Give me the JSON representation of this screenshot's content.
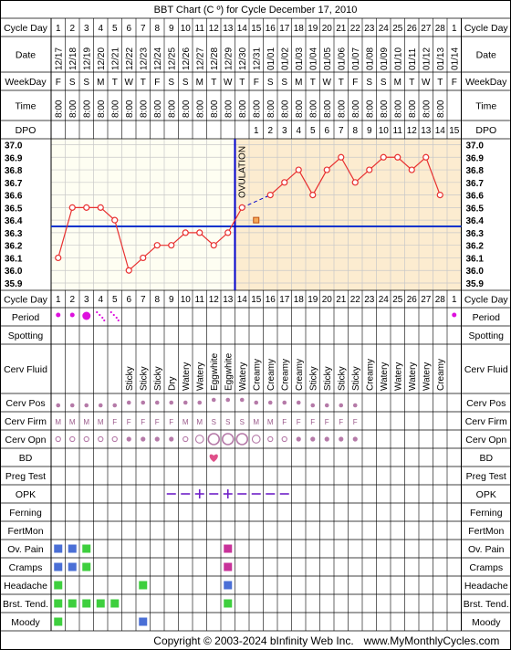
{
  "title": "BBT Chart (C º) for Cycle December 17, 2010",
  "footer": {
    "copyright": "Copyright © 2003-2024 bInfinity Web Inc.",
    "url": "www.MyMonthlyCycles.com"
  },
  "row_labels": {
    "cycle_day": "Cycle Day",
    "date": "Date",
    "weekday": "WeekDay",
    "time": "Time",
    "dpo": "DPO",
    "period": "Period",
    "spotting": "Spotting",
    "cerv_fluid": "Cerv Fluid",
    "cerv_pos": "Cerv Pos",
    "cerv_firm": "Cerv Firm",
    "cerv_opn": "Cerv Opn",
    "bd": "BD",
    "preg_test": "Preg Test",
    "opk": "OPK",
    "ferning": "Ferning",
    "fertmon": "FertMon",
    "ov_pain": "Ov. Pain",
    "cramps": "Cramps",
    "headache": "Headache",
    "brst_tend": "Brst. Tend.",
    "moody": "Moody"
  },
  "ovulation_label": "OVULATION",
  "colors": {
    "frame": "#000000",
    "grid": "#c8c8c8",
    "chart_bg_pre": "#fefef2",
    "chart_bg_post": "#fcecd0",
    "temp_line": "#e83030",
    "coverline": "#0033cc",
    "ovulation_line": "#0000cc",
    "symptom_blue": "#4a6fd6",
    "symptom_green": "#3ecf3e",
    "symptom_magenta": "#c8329a",
    "period_magenta": "#dd11dd",
    "cervix_dot": "#b57aa8",
    "heart": "#e0508a",
    "opk_purple": "#7020c8"
  },
  "days": [
    {
      "cd": "1",
      "date": "12/17",
      "wd": "F",
      "time": "8:00"
    },
    {
      "cd": "2",
      "date": "12/18",
      "wd": "S",
      "time": "8:00"
    },
    {
      "cd": "3",
      "date": "12/19",
      "wd": "S",
      "time": "8:00"
    },
    {
      "cd": "4",
      "date": "12/20",
      "wd": "M",
      "time": "8:00"
    },
    {
      "cd": "5",
      "date": "12/21",
      "wd": "T",
      "time": "8:00"
    },
    {
      "cd": "6",
      "date": "12/22",
      "wd": "W",
      "time": "8:00"
    },
    {
      "cd": "7",
      "date": "12/23",
      "wd": "T",
      "time": "8:00"
    },
    {
      "cd": "8",
      "date": "12/24",
      "wd": "F",
      "time": "8:00"
    },
    {
      "cd": "9",
      "date": "12/25",
      "wd": "S",
      "time": "8:00"
    },
    {
      "cd": "10",
      "date": "12/26",
      "wd": "S",
      "time": "8:00"
    },
    {
      "cd": "11",
      "date": "12/27",
      "wd": "M",
      "time": "8:00"
    },
    {
      "cd": "12",
      "date": "12/28",
      "wd": "T",
      "time": "8:00"
    },
    {
      "cd": "13",
      "date": "12/29",
      "wd": "W",
      "time": "8:00"
    },
    {
      "cd": "14",
      "date": "12/30",
      "wd": "T",
      "time": "8:00"
    },
    {
      "cd": "15",
      "date": "12/31",
      "wd": "F",
      "time": "8:00"
    },
    {
      "cd": "16",
      "date": "01/01",
      "wd": "S",
      "time": "8:00"
    },
    {
      "cd": "17",
      "date": "01/02",
      "wd": "S",
      "time": "8:00"
    },
    {
      "cd": "18",
      "date": "01/03",
      "wd": "M",
      "time": "8:00"
    },
    {
      "cd": "19",
      "date": "01/04",
      "wd": "T",
      "time": "8:00"
    },
    {
      "cd": "20",
      "date": "01/05",
      "wd": "W",
      "time": "8:00"
    },
    {
      "cd": "21",
      "date": "01/06",
      "wd": "T",
      "time": "8:00"
    },
    {
      "cd": "22",
      "date": "01/07",
      "wd": "F",
      "time": "8:00"
    },
    {
      "cd": "23",
      "date": "01/08",
      "wd": "S",
      "time": "8:00"
    },
    {
      "cd": "24",
      "date": "01/09",
      "wd": "S",
      "time": "8:00"
    },
    {
      "cd": "25",
      "date": "01/10",
      "wd": "M",
      "time": "8:00"
    },
    {
      "cd": "26",
      "date": "01/11",
      "wd": "T",
      "time": "8:00"
    },
    {
      "cd": "27",
      "date": "01/12",
      "wd": "W",
      "time": "8:00"
    },
    {
      "cd": "28",
      "date": "01/13",
      "wd": "T",
      "time": "8:00"
    },
    {
      "cd": "1",
      "date": "01/14",
      "wd": "F",
      "time": ""
    }
  ],
  "dpo": [
    "",
    "",
    "",
    "",
    "",
    "",
    "",
    "",
    "",
    "",
    "",
    "",
    "",
    "",
    "1",
    "2",
    "3",
    "4",
    "5",
    "6",
    "7",
    "8",
    "9",
    "10",
    "11",
    "12",
    "13",
    "14",
    "15"
  ],
  "cerv_fluid": [
    "",
    "",
    "",
    "",
    "",
    "Sticky",
    "Sticky",
    "Sticky",
    "Dry",
    "Watery",
    "Watery",
    "Eggwhite",
    "Eggwhite",
    "Watery",
    "Creamy",
    "Creamy",
    "Creamy",
    "Creamy",
    "Sticky",
    "Sticky",
    "Sticky",
    "Sticky",
    "Creamy",
    "Watery",
    "Watery",
    "Watery",
    "Watery",
    "Creamy",
    ""
  ],
  "cerv_pos": [
    "low",
    "low",
    "low",
    "low",
    "low",
    "mid",
    "mid",
    "mid",
    "mid",
    "mid",
    "mid",
    "high",
    "high",
    "high",
    "mid",
    "mid",
    "mid",
    "mid",
    "low",
    "low",
    "low",
    "low",
    "",
    "",
    "",
    "",
    "",
    "",
    ""
  ],
  "cerv_firm": [
    "M",
    "M",
    "M",
    "M",
    "F",
    "F",
    "F",
    "F",
    "F",
    "M",
    "M",
    "S",
    "S",
    "S",
    "M",
    "M",
    "F",
    "F",
    "F",
    "F",
    "F",
    "F",
    "",
    "",
    "",
    "",
    "",
    "",
    ""
  ],
  "cerv_opn": [
    "sm",
    "sm",
    "sm",
    "sm",
    "sm",
    "dot",
    "dot",
    "dot",
    "dot",
    "sm",
    "med",
    "lg",
    "lg",
    "lg",
    "med",
    "sm",
    "sm",
    "dot",
    "dot",
    "dot",
    "dot",
    "dot",
    "",
    "",
    "",
    "",
    "",
    "",
    ""
  ],
  "period": [
    "dot",
    "dot",
    "big",
    "spot",
    "spot",
    "",
    "",
    "",
    "",
    "",
    "",
    "",
    "",
    "",
    "",
    "",
    "",
    "",
    "",
    "",
    "",
    "",
    "",
    "",
    "",
    "",
    "",
    "",
    "dot"
  ],
  "bd": [
    11
  ],
  "opk": [
    8,
    9,
    10,
    11,
    12,
    13,
    14,
    15,
    16
  ],
  "opk_positive": [
    10,
    12
  ],
  "symptoms": {
    "ov_pain": {
      "blue": [
        0,
        1
      ],
      "green": [
        2
      ],
      "magenta": [
        12
      ]
    },
    "cramps": {
      "blue": [
        0,
        1
      ],
      "green": [
        2
      ],
      "magenta": [
        12
      ]
    },
    "headache": {
      "blue": [
        12
      ],
      "green": [
        0,
        6
      ],
      "magenta": []
    },
    "brst_tend": {
      "blue": [],
      "green": [
        0,
        1,
        2,
        3,
        4,
        12
      ],
      "magenta": []
    },
    "moody": {
      "blue": [
        6
      ],
      "green": [
        0
      ],
      "magenta": []
    }
  },
  "chart_data": {
    "type": "line",
    "title": "BBT Chart (C º) for Cycle December 17, 2010",
    "x": [
      1,
      2,
      3,
      4,
      5,
      6,
      7,
      8,
      9,
      10,
      11,
      12,
      13,
      14,
      15,
      16,
      17,
      18,
      19,
      20,
      21,
      22,
      23,
      24,
      25,
      26,
      27,
      28,
      1
    ],
    "ylim": [
      35.9,
      37.0
    ],
    "y_ticks": [
      "37.0",
      "36.9",
      "36.8",
      "36.7",
      "36.6",
      "36.5",
      "36.4",
      "36.3",
      "36.2",
      "36.1",
      "36.0",
      "35.9"
    ],
    "series": [
      {
        "values": [
          36.1,
          36.5,
          36.5,
          36.5,
          36.4,
          36.0,
          36.1,
          36.2,
          36.2,
          36.3,
          36.3,
          36.2,
          36.3,
          36.5,
          null,
          36.6,
          36.7,
          36.8,
          36.6,
          36.8,
          36.9,
          36.7,
          36.8,
          36.9,
          36.9,
          36.8,
          36.9,
          36.6,
          null
        ]
      }
    ],
    "excluded_point": {
      "day": 15,
      "value": 36.4
    },
    "coverline": 36.35,
    "ovulation_day": 13,
    "grid": true
  }
}
